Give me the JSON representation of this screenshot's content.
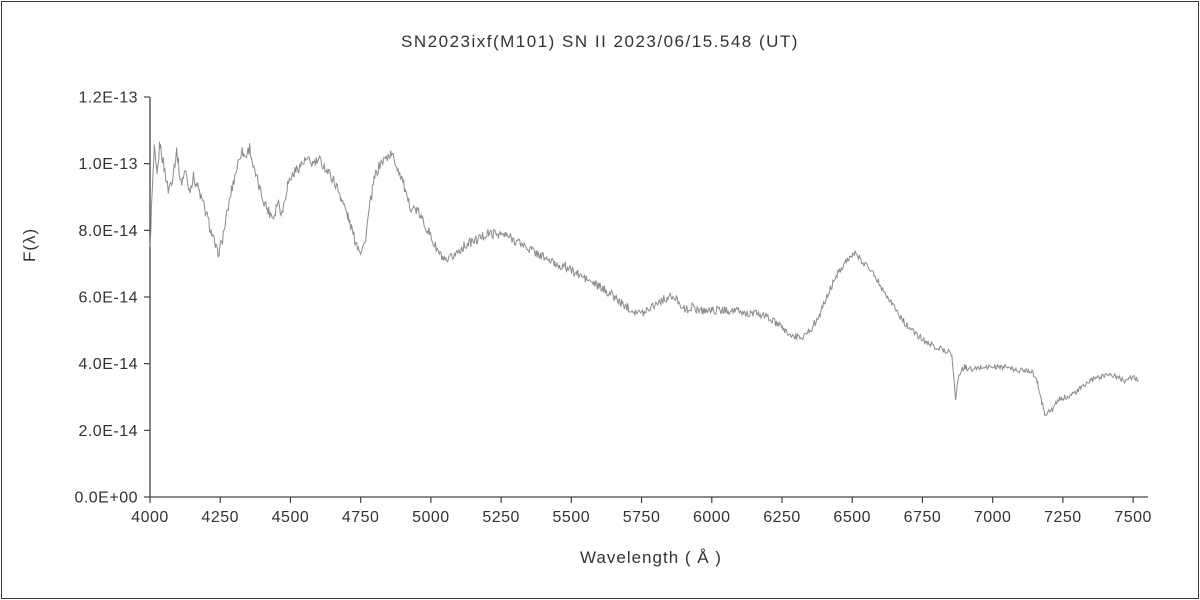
{
  "title": "SN2023ixf(M101)   SN II   2023/06/15.548 (UT)",
  "chart_data": {
    "type": "line",
    "title": "SN2023ixf(M101)   SN II   2023/06/15.548 (UT)",
    "xlabel": "Wavelength ( Å )",
    "ylabel": "F(λ)",
    "xlim": [
      4000,
      7553
    ],
    "ylim": [
      0,
      1.2e-13
    ],
    "grid": false,
    "legend": "none",
    "line_color": "#8c8c8c",
    "flux_scale": 1e-14,
    "noise_amplitude_1e14": 0.16,
    "x_ticks": [
      {
        "value": 4000,
        "label": "4000"
      },
      {
        "value": 4250,
        "label": "4250"
      },
      {
        "value": 4500,
        "label": "4500"
      },
      {
        "value": 4750,
        "label": "4750"
      },
      {
        "value": 5000,
        "label": "5000"
      },
      {
        "value": 5250,
        "label": "5250"
      },
      {
        "value": 5500,
        "label": "5500"
      },
      {
        "value": 5750,
        "label": "5750"
      },
      {
        "value": 6000,
        "label": "6000"
      },
      {
        "value": 6250,
        "label": "6250"
      },
      {
        "value": 6500,
        "label": "6500"
      },
      {
        "value": 6750,
        "label": "6750"
      },
      {
        "value": 7000,
        "label": "7000"
      },
      {
        "value": 7250,
        "label": "7250"
      },
      {
        "value": 7500,
        "label": "7500"
      }
    ],
    "y_ticks": [
      {
        "value": 0,
        "label": "0.0E+00"
      },
      {
        "value": 2e-14,
        "label": "2.0E-14"
      },
      {
        "value": 4e-14,
        "label": "4.0E-14"
      },
      {
        "value": 6e-14,
        "label": "6.0E-14"
      },
      {
        "value": 8e-14,
        "label": "8.0E-14"
      },
      {
        "value": 1e-13,
        "label": "1.0E-13"
      },
      {
        "value": 1.2e-13,
        "label": "1.2E-13"
      }
    ],
    "series": [
      {
        "name": "spectrum",
        "points_wavelength_flux1e14": [
          [
            4000,
            7.4
          ],
          [
            4005,
            8.6
          ],
          [
            4015,
            10.4
          ],
          [
            4025,
            9.6
          ],
          [
            4035,
            10.6
          ],
          [
            4050,
            9.9
          ],
          [
            4065,
            9.2
          ],
          [
            4080,
            9.6
          ],
          [
            4095,
            10.4
          ],
          [
            4110,
            9.4
          ],
          [
            4125,
            9.8
          ],
          [
            4140,
            9.2
          ],
          [
            4155,
            9.6
          ],
          [
            4170,
            9.3
          ],
          [
            4185,
            8.9
          ],
          [
            4200,
            8.5
          ],
          [
            4220,
            7.9
          ],
          [
            4240,
            7.3
          ],
          [
            4255,
            7.6
          ],
          [
            4270,
            8.3
          ],
          [
            4290,
            9.2
          ],
          [
            4310,
            9.9
          ],
          [
            4325,
            10.4
          ],
          [
            4340,
            10.2
          ],
          [
            4355,
            10.5
          ],
          [
            4370,
            9.8
          ],
          [
            4385,
            9.4
          ],
          [
            4400,
            9.0
          ],
          [
            4420,
            8.6
          ],
          [
            4440,
            8.4
          ],
          [
            4455,
            8.9
          ],
          [
            4470,
            8.5
          ],
          [
            4490,
            9.4
          ],
          [
            4510,
            9.7
          ],
          [
            4530,
            9.9
          ],
          [
            4555,
            10.1
          ],
          [
            4580,
            10.0
          ],
          [
            4605,
            10.1
          ],
          [
            4630,
            9.8
          ],
          [
            4655,
            9.5
          ],
          [
            4680,
            9.0
          ],
          [
            4705,
            8.4
          ],
          [
            4730,
            7.7
          ],
          [
            4750,
            7.4
          ],
          [
            4765,
            7.6
          ],
          [
            4780,
            8.6
          ],
          [
            4800,
            9.6
          ],
          [
            4820,
            10.0
          ],
          [
            4845,
            10.2
          ],
          [
            4860,
            10.3
          ],
          [
            4880,
            9.9
          ],
          [
            4900,
            9.5
          ],
          [
            4915,
            8.9
          ],
          [
            4930,
            8.7
          ],
          [
            4950,
            8.6
          ],
          [
            4970,
            8.3
          ],
          [
            4990,
            8.0
          ],
          [
            5010,
            7.6
          ],
          [
            5030,
            7.3
          ],
          [
            5055,
            7.0
          ],
          [
            5075,
            7.2
          ],
          [
            5100,
            7.4
          ],
          [
            5130,
            7.6
          ],
          [
            5160,
            7.7
          ],
          [
            5200,
            7.9
          ],
          [
            5240,
            7.9
          ],
          [
            5280,
            7.8
          ],
          [
            5320,
            7.6
          ],
          [
            5360,
            7.4
          ],
          [
            5400,
            7.2
          ],
          [
            5440,
            7.0
          ],
          [
            5480,
            6.9
          ],
          [
            5520,
            6.7
          ],
          [
            5560,
            6.5
          ],
          [
            5600,
            6.3
          ],
          [
            5640,
            6.1
          ],
          [
            5680,
            5.8
          ],
          [
            5720,
            5.6
          ],
          [
            5750,
            5.5
          ],
          [
            5780,
            5.7
          ],
          [
            5820,
            5.9
          ],
          [
            5850,
            6.0
          ],
          [
            5880,
            5.9
          ],
          [
            5905,
            5.6
          ],
          [
            5930,
            5.7
          ],
          [
            5960,
            5.6
          ],
          [
            6000,
            5.6
          ],
          [
            6040,
            5.6
          ],
          [
            6080,
            5.6
          ],
          [
            6120,
            5.5
          ],
          [
            6160,
            5.5
          ],
          [
            6200,
            5.4
          ],
          [
            6230,
            5.2
          ],
          [
            6260,
            5.0
          ],
          [
            6290,
            4.8
          ],
          [
            6320,
            4.8
          ],
          [
            6350,
            5.0
          ],
          [
            6380,
            5.4
          ],
          [
            6410,
            6.0
          ],
          [
            6440,
            6.6
          ],
          [
            6470,
            7.0
          ],
          [
            6490,
            7.2
          ],
          [
            6510,
            7.3
          ],
          [
            6530,
            7.1
          ],
          [
            6560,
            6.9
          ],
          [
            6590,
            6.5
          ],
          [
            6620,
            6.1
          ],
          [
            6650,
            5.7
          ],
          [
            6680,
            5.3
          ],
          [
            6710,
            5.0
          ],
          [
            6740,
            4.8
          ],
          [
            6770,
            4.6
          ],
          [
            6800,
            4.5
          ],
          [
            6830,
            4.4
          ],
          [
            6855,
            4.3
          ],
          [
            6868,
            2.9
          ],
          [
            6880,
            3.7
          ],
          [
            6900,
            3.9
          ],
          [
            6930,
            3.8
          ],
          [
            6960,
            3.9
          ],
          [
            6990,
            3.9
          ],
          [
            7020,
            3.9
          ],
          [
            7050,
            3.9
          ],
          [
            7080,
            3.8
          ],
          [
            7110,
            3.8
          ],
          [
            7140,
            3.8
          ],
          [
            7160,
            3.4
          ],
          [
            7185,
            2.5
          ],
          [
            7210,
            2.6
          ],
          [
            7235,
            2.9
          ],
          [
            7260,
            3.0
          ],
          [
            7290,
            3.1
          ],
          [
            7320,
            3.3
          ],
          [
            7350,
            3.5
          ],
          [
            7380,
            3.6
          ],
          [
            7410,
            3.7
          ],
          [
            7440,
            3.6
          ],
          [
            7470,
            3.5
          ],
          [
            7500,
            3.6
          ],
          [
            7520,
            3.5
          ]
        ]
      }
    ]
  }
}
